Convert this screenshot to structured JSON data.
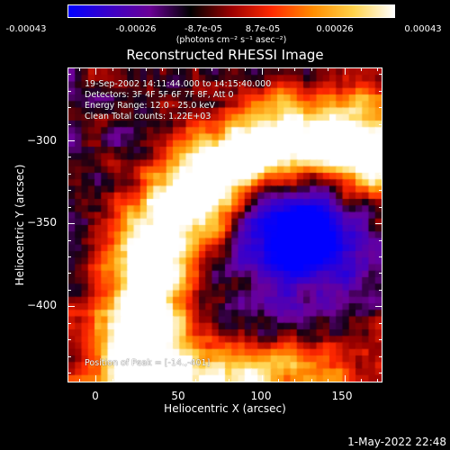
{
  "colorbar": {
    "tick_labels": [
      "-0.00043",
      "-0.00026",
      "-8.7e-05",
      "8.7e-05",
      "0.00026",
      "0.00043"
    ],
    "units": "(photons cm⁻² s⁻¹ asec⁻²)",
    "colors": [
      "#0000ff",
      "#3a00c8",
      "#6a0096",
      "#000000",
      "#9b0000",
      "#ff2a00",
      "#ff8c00",
      "#ffd24a",
      "#ffffff"
    ]
  },
  "title": "Reconstructed RHESSI Image",
  "info_lines": [
    "19-Sep-2002 14:11:44.000 to 14:15:40.000",
    "Detectors: 3F 4F 5F 6F 7F 8F, Att 0",
    "Energy Range: 12.0 - 25.0 keV",
    "Clean     Total counts: 1.22E+03"
  ],
  "peak_text": "Position of Peak = [-14.,-401]",
  "x_axis": {
    "label": "Heliocentric X (arcsec)",
    "range": [
      -17,
      173
    ],
    "ticks": [
      0,
      50,
      100,
      150
    ],
    "tick_labels": [
      "0",
      "50",
      "100",
      "150"
    ]
  },
  "y_axis": {
    "label": "Heliocentric Y (arcsec)",
    "range": [
      -446,
      -256
    ],
    "ticks": [
      -300,
      -350,
      -400
    ],
    "tick_labels": [
      "−300",
      "−350",
      "−400"
    ]
  },
  "date_stamp": "1-May-2022 22:48"
}
